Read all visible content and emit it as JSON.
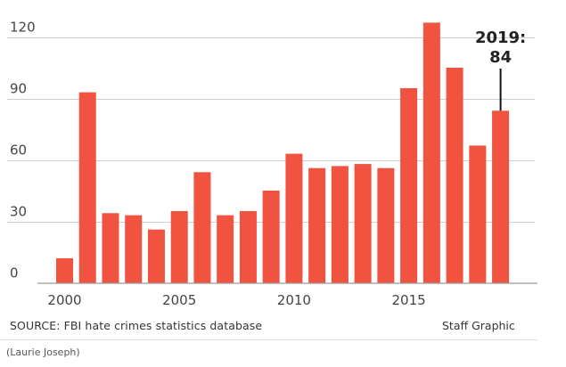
{
  "chart_data": {
    "type": "bar",
    "categories": [
      "2000",
      "2001",
      "2002",
      "2003",
      "2004",
      "2005",
      "2006",
      "2007",
      "2008",
      "2009",
      "2010",
      "2011",
      "2012",
      "2013",
      "2014",
      "2015",
      "2016",
      "2017",
      "2018",
      "2019"
    ],
    "values": [
      12,
      93,
      34,
      33,
      26,
      35,
      54,
      33,
      35,
      45,
      63,
      56,
      57,
      58,
      56,
      95,
      127,
      105,
      67,
      84
    ],
    "ylim": [
      0,
      130
    ],
    "yticks": [
      "0",
      "30",
      "60",
      "90",
      "120"
    ],
    "ytick_values": [
      0,
      30,
      60,
      90,
      120
    ],
    "xticks": [
      "2000",
      "2005",
      "2010",
      "2015"
    ],
    "xtick_values": [
      2000,
      2005,
      2010,
      2015
    ],
    "grid": true,
    "bar_color": "#f0533f",
    "annotation": {
      "year": "2019",
      "line1": "2019:",
      "line2": "84"
    }
  },
  "footer": {
    "source": "SOURCE: FBI hate crimes statistics database",
    "credit": "Staff Graphic",
    "caption": "(Laurie Joseph)"
  }
}
